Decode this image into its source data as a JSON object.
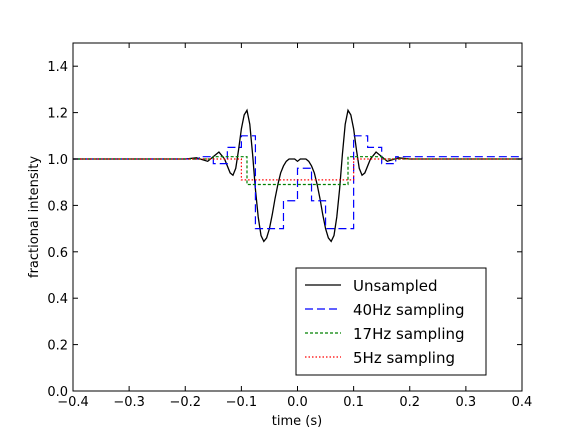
{
  "chart_data": {
    "type": "line",
    "title": "",
    "xlabel": "time (s)",
    "ylabel": "fractional intensity",
    "xlim": [
      -0.4,
      0.4
    ],
    "ylim": [
      0.0,
      1.5
    ],
    "xticks": [
      -0.4,
      -0.3,
      -0.2,
      -0.1,
      0.0,
      0.1,
      0.2,
      0.3,
      0.4
    ],
    "xtick_labels": [
      "−0.4",
      "−0.3",
      "−0.2",
      "−0.1",
      "0.0",
      "0.1",
      "0.2",
      "0.3",
      "0.4"
    ],
    "yticks": [
      0.0,
      0.2,
      0.4,
      0.6,
      0.8,
      1.0,
      1.2,
      1.4
    ],
    "ytick_labels": [
      "0.0",
      "0.2",
      "0.4",
      "0.6",
      "0.8",
      "1.0",
      "1.2",
      "1.4"
    ],
    "grid": false,
    "legend_position": "lower-right",
    "series": [
      {
        "name": "Unsampled",
        "color": "#000000",
        "style": "solid",
        "x": [
          -0.4,
          -0.3,
          -0.25,
          -0.2,
          -0.18,
          -0.16,
          -0.15,
          -0.14,
          -0.13,
          -0.12,
          -0.115,
          -0.11,
          -0.105,
          -0.1,
          -0.095,
          -0.09,
          -0.085,
          -0.08,
          -0.075,
          -0.07,
          -0.065,
          -0.06,
          -0.055,
          -0.05,
          -0.045,
          -0.04,
          -0.035,
          -0.03,
          -0.025,
          -0.02,
          -0.015,
          -0.01,
          -0.005,
          0.0,
          0.005,
          0.01,
          0.015,
          0.02,
          0.025,
          0.03,
          0.035,
          0.04,
          0.045,
          0.05,
          0.055,
          0.06,
          0.065,
          0.07,
          0.075,
          0.08,
          0.085,
          0.09,
          0.095,
          0.1,
          0.105,
          0.11,
          0.115,
          0.12,
          0.13,
          0.14,
          0.15,
          0.16,
          0.18,
          0.2,
          0.25,
          0.3,
          0.4
        ],
        "y": [
          1.0,
          1.0,
          1.0,
          1.0,
          1.005,
          0.99,
          1.01,
          1.03,
          1.0,
          0.94,
          0.93,
          0.96,
          1.04,
          1.13,
          1.19,
          1.21,
          1.15,
          1.02,
          0.87,
          0.75,
          0.67,
          0.645,
          0.66,
          0.7,
          0.76,
          0.83,
          0.89,
          0.94,
          0.97,
          0.99,
          1.0,
          1.0,
          1.0,
          0.99,
          1.0,
          1.0,
          1.0,
          0.99,
          0.97,
          0.94,
          0.89,
          0.83,
          0.76,
          0.7,
          0.66,
          0.645,
          0.67,
          0.75,
          0.87,
          1.02,
          1.15,
          1.21,
          1.19,
          1.13,
          1.04,
          0.96,
          0.93,
          0.94,
          1.0,
          1.03,
          1.01,
          0.99,
          1.005,
          1.0,
          1.0,
          1.0,
          1.0
        ]
      },
      {
        "name": "40Hz sampling",
        "color": "#0000ff",
        "style": "dashed",
        "step": true,
        "x": [
          -0.4,
          -0.175,
          -0.15,
          -0.125,
          -0.1,
          -0.075,
          -0.05,
          -0.025,
          0.0,
          0.025,
          0.05,
          0.075,
          0.1,
          0.125,
          0.15,
          0.175,
          0.4
        ],
        "y": [
          1.0,
          1.01,
          0.98,
          1.05,
          1.1,
          0.7,
          0.7,
          0.82,
          0.96,
          0.82,
          0.7,
          0.7,
          1.1,
          1.05,
          0.98,
          1.01,
          1.0
        ]
      },
      {
        "name": "17Hz sampling",
        "color": "#008000",
        "style": "dotted",
        "step": true,
        "x": [
          -0.4,
          -0.15,
          -0.09,
          -0.03,
          0.03,
          0.09,
          0.15,
          0.4
        ],
        "y": [
          1.0,
          1.01,
          0.89,
          0.89,
          0.89,
          1.01,
          1.0,
          1.0
        ]
      },
      {
        "name": "5Hz sampling",
        "color": "#ff0000",
        "style": "dotted-fine",
        "step": true,
        "x": [
          -0.4,
          -0.1,
          0.1,
          0.4
        ],
        "y": [
          1.0,
          0.91,
          1.0,
          1.0
        ]
      }
    ]
  }
}
